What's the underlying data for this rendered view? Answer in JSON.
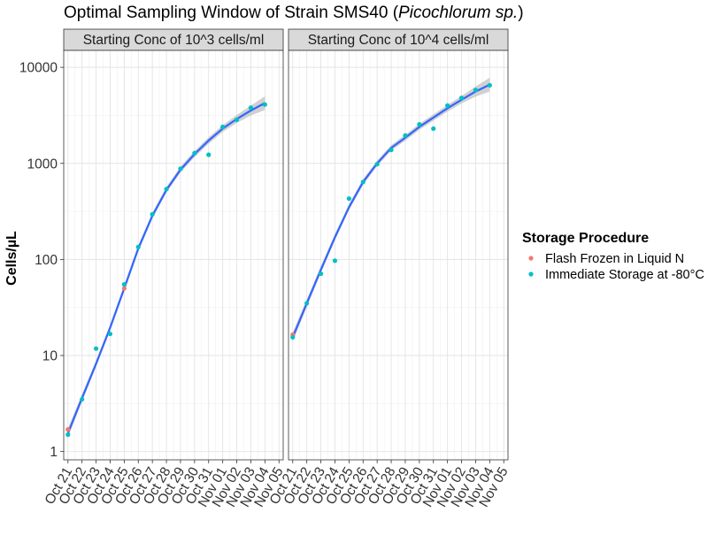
{
  "chart_data": {
    "type": "scatter",
    "title": "Optimal Sampling Window of Strain SMS40 (",
    "title_italic": "Picochlorum sp.",
    "title_end": ")",
    "xlabel": "",
    "ylabel": "Cells/µL",
    "y_scale": "log10",
    "ylim": [
      0.82,
      15000
    ],
    "y_ticks": [
      1,
      10,
      100,
      1000,
      10000
    ],
    "y_tick_labels": [
      "1",
      "10",
      "100",
      "1000",
      "10000"
    ],
    "x_ticks": [
      "Oct 21",
      "Oct 22",
      "Oct 23",
      "Oct 24",
      "Oct 25",
      "Oct 26",
      "Oct 27",
      "Oct 28",
      "Oct 29",
      "Oct 30",
      "Oct 31",
      "Nov 01",
      "Nov 02",
      "Nov 03",
      "Nov 04",
      "Nov 05"
    ],
    "xlim_days": [
      -0.3,
      15.3
    ],
    "grid": true,
    "legend": {
      "title": "Storage Procedure",
      "position": "right",
      "entries": [
        {
          "label": "Flash Frozen in Liquid N",
          "color": "#F8766D"
        },
        {
          "label": "Immediate Storage at -80°C",
          "color": "#00BFC4"
        }
      ]
    },
    "smooth_color": "#3366FF",
    "ribbon_color": "#BEBEBE",
    "panels": [
      {
        "label": "Starting Conc of 10^3 cells/ml",
        "points": [
          {
            "x": "Oct 21",
            "y": 1.7,
            "series": "Flash Frozen in Liquid N"
          },
          {
            "x": "Oct 21",
            "y": 1.5,
            "series": "Immediate Storage at -80°C"
          },
          {
            "x": "Oct 22",
            "y": 3.5,
            "series": "Immediate Storage at -80°C"
          },
          {
            "x": "Oct 23",
            "y": 11.8,
            "series": "Immediate Storage at -80°C"
          },
          {
            "x": "Oct 24",
            "y": 16.8,
            "series": "Immediate Storage at -80°C"
          },
          {
            "x": "Oct 25",
            "y": 50,
            "series": "Flash Frozen in Liquid N"
          },
          {
            "x": "Oct 25",
            "y": 55,
            "series": "Immediate Storage at -80°C"
          },
          {
            "x": "Oct 26",
            "y": 135,
            "series": "Immediate Storage at -80°C"
          },
          {
            "x": "Oct 27",
            "y": 295,
            "series": "Immediate Storage at -80°C"
          },
          {
            "x": "Oct 28",
            "y": 540,
            "series": "Immediate Storage at -80°C"
          },
          {
            "x": "Oct 29",
            "y": 880,
            "series": "Immediate Storage at -80°C"
          },
          {
            "x": "Oct 30",
            "y": 1280,
            "series": "Immediate Storage at -80°C"
          },
          {
            "x": "Oct 31",
            "y": 1230,
            "series": "Immediate Storage at -80°C"
          },
          {
            "x": "Nov 01",
            "y": 2400,
            "series": "Immediate Storage at -80°C"
          },
          {
            "x": "Nov 02",
            "y": 2850,
            "series": "Immediate Storage at -80°C"
          },
          {
            "x": "Nov 03",
            "y": 3800,
            "series": "Immediate Storage at -80°C"
          },
          {
            "x": "Nov 04",
            "y": 4100,
            "series": "Immediate Storage at -80°C"
          }
        ],
        "smooth": [
          {
            "x": "Oct 21",
            "y": 1.55,
            "lo": 1.4,
            "hi": 1.75
          },
          {
            "x": "Oct 22",
            "y": 3.6,
            "lo": 3.3,
            "hi": 3.95
          },
          {
            "x": "Oct 23",
            "y": 8.2,
            "lo": 7.6,
            "hi": 8.9
          },
          {
            "x": "Oct 24",
            "y": 19.5,
            "lo": 18.2,
            "hi": 21
          },
          {
            "x": "Oct 25",
            "y": 50,
            "lo": 46,
            "hi": 54
          },
          {
            "x": "Oct 26",
            "y": 130,
            "lo": 121,
            "hi": 140
          },
          {
            "x": "Oct 27",
            "y": 285,
            "lo": 266,
            "hi": 305
          },
          {
            "x": "Oct 28",
            "y": 530,
            "lo": 495,
            "hi": 568
          },
          {
            "x": "Oct 29",
            "y": 860,
            "lo": 800,
            "hi": 925
          },
          {
            "x": "Oct 30",
            "y": 1250,
            "lo": 1160,
            "hi": 1350
          },
          {
            "x": "Oct 31",
            "y": 1730,
            "lo": 1600,
            "hi": 1870
          },
          {
            "x": "Nov 01",
            "y": 2300,
            "lo": 2120,
            "hi": 2500
          },
          {
            "x": "Nov 02",
            "y": 2900,
            "lo": 2640,
            "hi": 3190
          },
          {
            "x": "Nov 03",
            "y": 3550,
            "lo": 3150,
            "hi": 4000
          },
          {
            "x": "Nov 04",
            "y": 4250,
            "lo": 3600,
            "hi": 5000
          }
        ]
      },
      {
        "label": "Starting Conc of 10^4 cells/ml",
        "points": [
          {
            "x": "Oct 21",
            "y": 16.5,
            "series": "Flash Frozen in Liquid N"
          },
          {
            "x": "Oct 21",
            "y": 15.5,
            "series": "Immediate Storage at -80°C"
          },
          {
            "x": "Oct 22",
            "y": 35,
            "series": "Immediate Storage at -80°C"
          },
          {
            "x": "Oct 23",
            "y": 71,
            "series": "Immediate Storage at -80°C"
          },
          {
            "x": "Oct 24",
            "y": 97,
            "series": "Immediate Storage at -80°C"
          },
          {
            "x": "Oct 25",
            "y": 430,
            "series": "Immediate Storage at -80°C"
          },
          {
            "x": "Oct 26",
            "y": 640,
            "series": "Immediate Storage at -80°C"
          },
          {
            "x": "Oct 27",
            "y": 980,
            "series": "Immediate Storage at -80°C"
          },
          {
            "x": "Oct 28",
            "y": 1380,
            "series": "Immediate Storage at -80°C"
          },
          {
            "x": "Oct 29",
            "y": 1950,
            "series": "Immediate Storage at -80°C"
          },
          {
            "x": "Oct 30",
            "y": 2550,
            "series": "Immediate Storage at -80°C"
          },
          {
            "x": "Oct 31",
            "y": 2300,
            "series": "Immediate Storage at -80°C"
          },
          {
            "x": "Nov 01",
            "y": 4000,
            "series": "Immediate Storage at -80°C"
          },
          {
            "x": "Nov 02",
            "y": 4800,
            "series": "Immediate Storage at -80°C"
          },
          {
            "x": "Nov 03",
            "y": 5800,
            "series": "Immediate Storage at -80°C"
          },
          {
            "x": "Nov 04",
            "y": 6500,
            "series": "Immediate Storage at -80°C"
          }
        ],
        "smooth": [
          {
            "x": "Oct 21",
            "y": 15.5,
            "lo": 13.8,
            "hi": 17.4
          },
          {
            "x": "Oct 22",
            "y": 35,
            "lo": 32,
            "hi": 38.5
          },
          {
            "x": "Oct 23",
            "y": 78,
            "lo": 72,
            "hi": 85
          },
          {
            "x": "Oct 24",
            "y": 170,
            "lo": 158,
            "hi": 183
          },
          {
            "x": "Oct 25",
            "y": 350,
            "lo": 326,
            "hi": 376
          },
          {
            "x": "Oct 26",
            "y": 640,
            "lo": 597,
            "hi": 686
          },
          {
            "x": "Oct 27",
            "y": 1000,
            "lo": 935,
            "hi": 1070
          },
          {
            "x": "Oct 28",
            "y": 1450,
            "lo": 1355,
            "hi": 1550
          },
          {
            "x": "Oct 29",
            "y": 1850,
            "lo": 1725,
            "hi": 1985
          },
          {
            "x": "Oct 30",
            "y": 2400,
            "lo": 2230,
            "hi": 2580
          },
          {
            "x": "Oct 31",
            "y": 3000,
            "lo": 2780,
            "hi": 3240
          },
          {
            "x": "Nov 01",
            "y": 3750,
            "lo": 3460,
            "hi": 4060
          },
          {
            "x": "Nov 02",
            "y": 4600,
            "lo": 4200,
            "hi": 5040
          },
          {
            "x": "Nov 03",
            "y": 5600,
            "lo": 4950,
            "hi": 6330
          },
          {
            "x": "Nov 04",
            "y": 6600,
            "lo": 5600,
            "hi": 7800
          }
        ]
      }
    ]
  }
}
